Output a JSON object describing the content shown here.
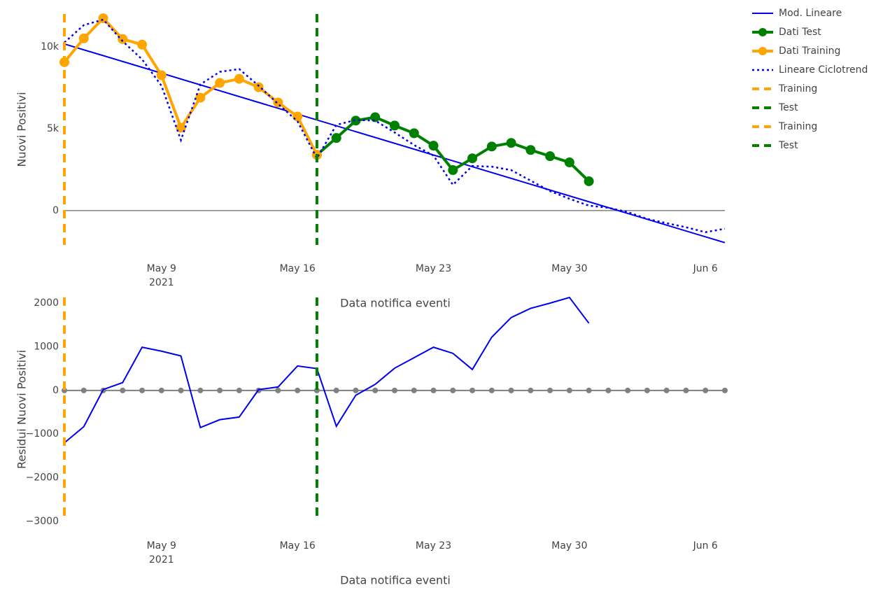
{
  "chart_data": [
    {
      "type": "line",
      "y_title": "Nuovi Positivi",
      "x_title": "Data notifica eventi",
      "xlim": [
        "2021-05-04",
        "2021-06-07"
      ],
      "xticks": [
        {
          "value": "2021-05-09",
          "label": "May 9\n2021"
        },
        {
          "value": "2021-05-16",
          "label": "May 16"
        },
        {
          "value": "2021-05-23",
          "label": "May 23"
        },
        {
          "value": "2021-05-30",
          "label": "May 30"
        },
        {
          "value": "2021-06-06",
          "label": "Jun 6"
        }
      ],
      "ylim": [
        -2100,
        12000
      ],
      "yticks": [
        0,
        {
          "value": 5000,
          "label": "5k"
        },
        {
          "value": 10000,
          "label": "10k"
        }
      ],
      "zeroline": true,
      "legend": "right",
      "series": [
        {
          "name": "Mod. Lineare",
          "color": "#0000ee",
          "dash": "solid",
          "markers": false,
          "x": [
            "2021-05-04",
            "2021-06-07"
          ],
          "values": [
            10170,
            -1960
          ]
        },
        {
          "name": "Dati Test",
          "color": "#008000",
          "dash": "solid",
          "markers": true,
          "x": [
            "2021-05-17",
            "2021-05-18",
            "2021-05-19",
            "2021-05-20",
            "2021-05-21",
            "2021-05-22",
            "2021-05-23",
            "2021-05-24",
            "2021-05-25",
            "2021-05-26",
            "2021-05-27",
            "2021-05-28",
            "2021-05-29",
            "2021-05-30",
            "2021-05-31"
          ],
          "values": [
            3400,
            4430,
            5490,
            5700,
            5190,
            4720,
            3960,
            2470,
            3190,
            3910,
            4130,
            3700,
            3320,
            2940,
            1790
          ]
        },
        {
          "name": "Dati Training",
          "color": "#ffa500",
          "dash": "solid",
          "markers": true,
          "x": [
            "2021-05-04",
            "2021-05-05",
            "2021-05-06",
            "2021-05-07",
            "2021-05-08",
            "2021-05-09",
            "2021-05-10",
            "2021-05-11",
            "2021-05-12",
            "2021-05-13",
            "2021-05-14",
            "2021-05-15",
            "2021-05-16",
            "2021-05-17"
          ],
          "values": [
            9060,
            10510,
            11740,
            10470,
            10130,
            8260,
            5060,
            6890,
            7790,
            8040,
            7530,
            6600,
            5740,
            3400
          ]
        },
        {
          "name": "Lineare Ciclotrend",
          "color": "#0000ee",
          "dash": "dot",
          "markers": false,
          "x": [
            "2021-05-04",
            "2021-05-05",
            "2021-05-06",
            "2021-05-07",
            "2021-05-08",
            "2021-05-09",
            "2021-05-10",
            "2021-05-11",
            "2021-05-12",
            "2021-05-13",
            "2021-05-14",
            "2021-05-15",
            "2021-05-16",
            "2021-05-17",
            "2021-05-18",
            "2021-05-19",
            "2021-05-20",
            "2021-05-21",
            "2021-05-22",
            "2021-05-23",
            "2021-05-24",
            "2021-05-25",
            "2021-05-26",
            "2021-05-27",
            "2021-05-28",
            "2021-05-29",
            "2021-05-30",
            "2021-05-31",
            "2021-06-01",
            "2021-06-02",
            "2021-06-03",
            "2021-06-04",
            "2021-06-05",
            "2021-06-06",
            "2021-06-07"
          ],
          "values": [
            10260,
            11320,
            11660,
            10340,
            9230,
            7620,
            4300,
            7700,
            8470,
            8640,
            7620,
            6510,
            5450,
            3190,
            5230,
            5530,
            5490,
            4770,
            4000,
            3360,
            1570,
            2720,
            2680,
            2470,
            1830,
            1190,
            720,
            300,
            170,
            -90,
            -510,
            -770,
            -1020,
            -1320,
            -1110
          ]
        }
      ],
      "vlines": [
        {
          "name": "Training",
          "color": "#ffa500",
          "x": "2021-05-04"
        },
        {
          "name": "Test",
          "color": "#008000",
          "x": "2021-05-17"
        }
      ]
    },
    {
      "type": "line",
      "y_title": "Residui Nuovi Positivi",
      "x_title": "Data notifica eventi",
      "xlim": [
        "2021-05-04",
        "2021-06-07"
      ],
      "xticks": [
        {
          "value": "2021-05-09",
          "label": "May 9\n2021"
        },
        {
          "value": "2021-05-16",
          "label": "May 16"
        },
        {
          "value": "2021-05-23",
          "label": "May 23"
        },
        {
          "value": "2021-05-30",
          "label": "May 30"
        },
        {
          "value": "2021-06-06",
          "label": "Jun 6"
        }
      ],
      "ylim": [
        -3000,
        2130
      ],
      "yticks": [
        {
          "value": -3000,
          "label": "−3000"
        },
        {
          "value": -2000,
          "label": "−2000"
        },
        {
          "value": -1000,
          "label": "−1000"
        },
        0,
        1000,
        2000
      ],
      "zeroline": true,
      "series": [
        {
          "color": "#808080",
          "dash": "solid",
          "markers": true,
          "x": [
            "2021-05-04",
            "2021-05-05",
            "2021-05-06",
            "2021-05-07",
            "2021-05-08",
            "2021-05-09",
            "2021-05-10",
            "2021-05-11",
            "2021-05-12",
            "2021-05-13",
            "2021-05-14",
            "2021-05-15",
            "2021-05-16",
            "2021-05-17",
            "2021-05-18",
            "2021-05-19",
            "2021-05-20",
            "2021-05-21",
            "2021-05-22",
            "2021-05-23",
            "2021-05-24",
            "2021-05-25",
            "2021-05-26",
            "2021-05-27",
            "2021-05-28",
            "2021-05-29",
            "2021-05-30",
            "2021-05-31",
            "2021-06-01",
            "2021-06-02",
            "2021-06-03",
            "2021-06-04",
            "2021-06-05",
            "2021-06-06",
            "2021-06-07"
          ],
          "values": [
            0,
            0,
            0,
            0,
            0,
            0,
            0,
            0,
            0,
            0,
            0,
            0,
            0,
            0,
            0,
            0,
            0,
            0,
            0,
            0,
            0,
            0,
            0,
            0,
            0,
            0,
            0,
            0,
            0,
            0,
            0,
            0,
            0,
            0,
            0
          ]
        },
        {
          "color": "#0000ee",
          "dash": "solid",
          "markers": false,
          "x": [
            "2021-05-04",
            "2021-05-05",
            "2021-05-06",
            "2021-05-07",
            "2021-05-08",
            "2021-05-09",
            "2021-05-10",
            "2021-05-11",
            "2021-05-12",
            "2021-05-13",
            "2021-05-14",
            "2021-05-15",
            "2021-05-16",
            "2021-05-17",
            "2021-05-18",
            "2021-05-19",
            "2021-05-20",
            "2021-05-21",
            "2021-05-22",
            "2021-05-23",
            "2021-05-24",
            "2021-05-25",
            "2021-05-26",
            "2021-05-27",
            "2021-05-28",
            "2021-05-29",
            "2021-05-30",
            "2021-05-31"
          ],
          "values": [
            -1200,
            -830,
            20,
            180,
            990,
            900,
            790,
            -850,
            -670,
            -610,
            20,
            80,
            560,
            500,
            -820,
            -110,
            140,
            510,
            750,
            990,
            850,
            480,
            1220,
            1670,
            1880,
            2000,
            2130,
            1540
          ]
        }
      ],
      "vlines": [
        {
          "name": "Training",
          "color": "#ffa500",
          "x": "2021-05-04"
        },
        {
          "name": "Test",
          "color": "#008000",
          "x": "2021-05-17"
        }
      ]
    }
  ]
}
